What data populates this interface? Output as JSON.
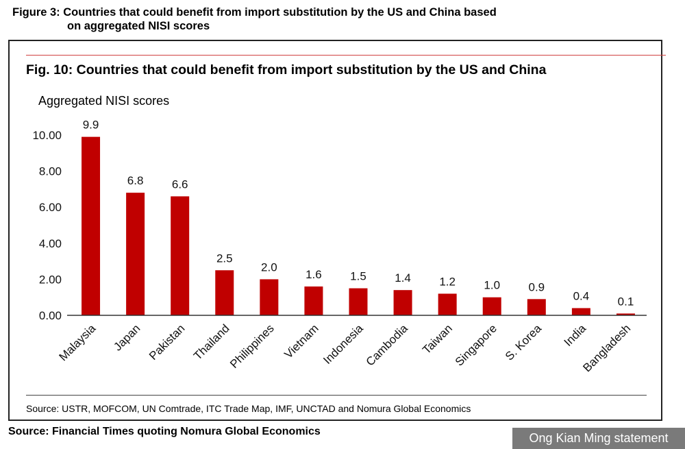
{
  "outer_title": {
    "line1": "Figure 3: Countries that could benefit from import substitution by the US and China based",
    "line2": "on aggregated NISI scores"
  },
  "chart_data": {
    "type": "bar",
    "title": "Fig. 10: Countries that could benefit from import substitution by the US and China",
    "ylabel": "Aggregated NISI scores",
    "xlabel": "",
    "categories": [
      "Malaysia",
      "Japan",
      "Pakistan",
      "Thailand",
      "Philippines",
      "Vietnam",
      "Indonesia",
      "Cambodia",
      "Taiwan",
      "Singapore",
      "S. Korea",
      "India",
      "Bangladesh"
    ],
    "values": [
      9.9,
      6.8,
      6.6,
      2.5,
      2.0,
      1.6,
      1.5,
      1.4,
      1.2,
      1.0,
      0.9,
      0.4,
      0.1
    ],
    "data_labels": [
      "9.9",
      "6.8",
      "6.6",
      "2.5",
      "2.0",
      "1.6",
      "1.5",
      "1.4",
      "1.2",
      "1.0",
      "0.9",
      "0.4",
      "0.1"
    ],
    "yticks": [
      "0.00",
      "2.00",
      "4.00",
      "6.00",
      "8.00",
      "10.00"
    ],
    "ylim": [
      0,
      10
    ],
    "bar_color": "#c00000",
    "grid": false
  },
  "source_inner": "Source: USTR, MOFCOM, UN Comtrade, ITC Trade Map, IMF, UNCTAD and Nomura Global Economics",
  "source_outer": "Source: Financial Times quoting Nomura Global Economics",
  "watermark": "Ong Kian Ming statement"
}
